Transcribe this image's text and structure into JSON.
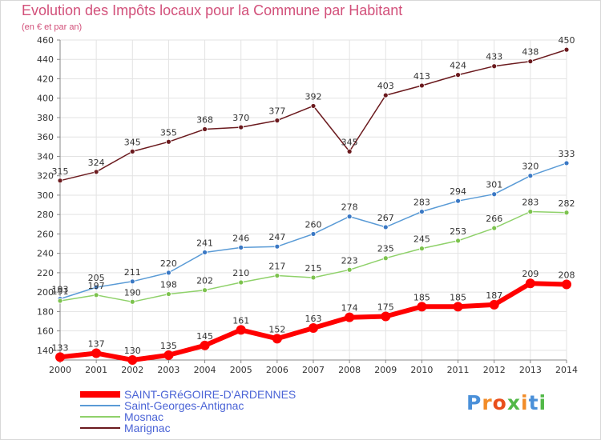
{
  "title": "Evolution des Impôts locaux pour la Commune par Habitant",
  "subtitle": "(en € et par an)",
  "logo": {
    "letters": [
      "P",
      "r",
      "o",
      "x",
      "i",
      "t",
      "i"
    ],
    "colors": [
      "#4a90d9",
      "#f28c28",
      "#e94e1b",
      "#52b848",
      "#f28c28",
      "#4a90d9",
      "#52b848"
    ]
  },
  "chart_data": {
    "type": "line",
    "x": [
      2000,
      2001,
      2002,
      2003,
      2004,
      2005,
      2006,
      2007,
      2008,
      2009,
      2010,
      2011,
      2012,
      2013,
      2014
    ],
    "ylim": [
      130,
      460
    ],
    "yticks": [
      140,
      160,
      180,
      200,
      220,
      240,
      260,
      280,
      300,
      320,
      340,
      360,
      380,
      400,
      420,
      440,
      460
    ],
    "grid": true,
    "legend_position": "bottom-left",
    "series": [
      {
        "name": "Marignac",
        "color": "#6b1a1e",
        "width": 1.5,
        "values": [
          315,
          324,
          345,
          355,
          368,
          370,
          377,
          392,
          345,
          403,
          413,
          424,
          433,
          438,
          450
        ]
      },
      {
        "name": "Saint-Georges-Antignac",
        "color": "#5a9bd6",
        "width": 1.5,
        "values": [
          193,
          205,
          211,
          220,
          241,
          246,
          247,
          260,
          278,
          267,
          283,
          294,
          301,
          320,
          333
        ]
      },
      {
        "name": "Mosnac",
        "color": "#8fd16a",
        "width": 1.5,
        "values": [
          191,
          197,
          190,
          198,
          202,
          210,
          217,
          215,
          223,
          235,
          245,
          253,
          266,
          283,
          282
        ]
      },
      {
        "name": "SAINT-GRéGOIRE-D'ARDENNES",
        "color": "#ff0000",
        "width": 6,
        "values": [
          133,
          137,
          130,
          135,
          145,
          161,
          152,
          163,
          174,
          175,
          185,
          185,
          187,
          209,
          208
        ]
      }
    ],
    "legend_order": [
      "SAINT-GRéGOIRE-D'ARDENNES",
      "Saint-Georges-Antignac",
      "Mosnac",
      "Marignac"
    ],
    "legend_text_color": "#4a63d6"
  }
}
